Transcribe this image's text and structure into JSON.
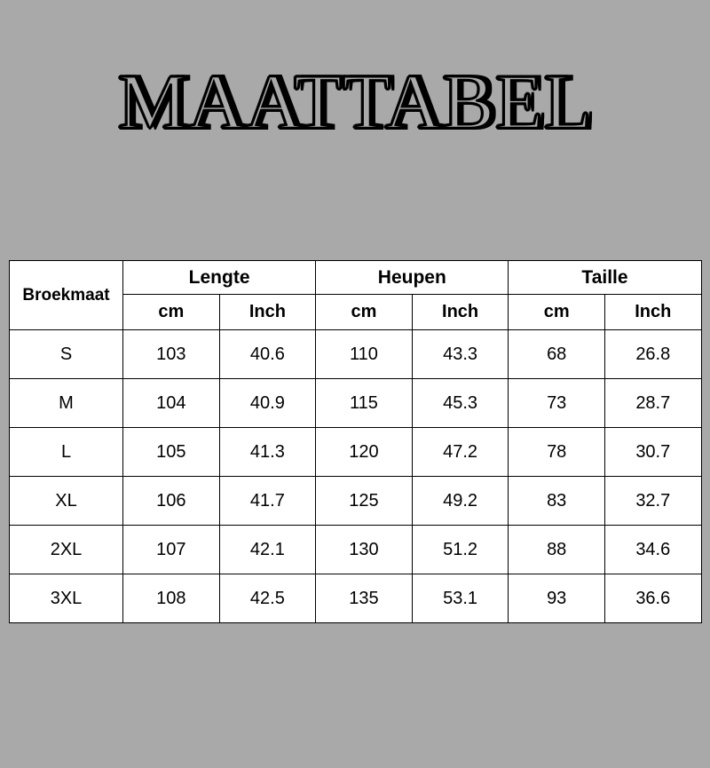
{
  "title": "MAATTABEL",
  "colors": {
    "page_bg": "#a9a9a9",
    "table_bg": "#ffffff",
    "border": "#000000",
    "text": "#000000"
  },
  "table": {
    "size_header": "Broekmaat",
    "groups": [
      "Lengte",
      "Heupen",
      "Taille"
    ],
    "sub_headers": [
      "cm",
      "Inch",
      "cm",
      "Inch",
      "cm",
      "Inch"
    ],
    "rows": [
      {
        "size": "S",
        "vals": [
          "103",
          "40.6",
          "110",
          "43.3",
          "68",
          "26.8"
        ]
      },
      {
        "size": "M",
        "vals": [
          "104",
          "40.9",
          "115",
          "45.3",
          "73",
          "28.7"
        ]
      },
      {
        "size": "L",
        "vals": [
          "105",
          "41.3",
          "120",
          "47.2",
          "78",
          "30.7"
        ]
      },
      {
        "size": "XL",
        "vals": [
          "106",
          "41.7",
          "125",
          "49.2",
          "83",
          "32.7"
        ]
      },
      {
        "size": "2XL",
        "vals": [
          "107",
          "42.1",
          "130",
          "51.2",
          "88",
          "34.6"
        ]
      },
      {
        "size": "3XL",
        "vals": [
          "108",
          "42.5",
          "135",
          "53.1",
          "93",
          "36.6"
        ]
      }
    ]
  }
}
